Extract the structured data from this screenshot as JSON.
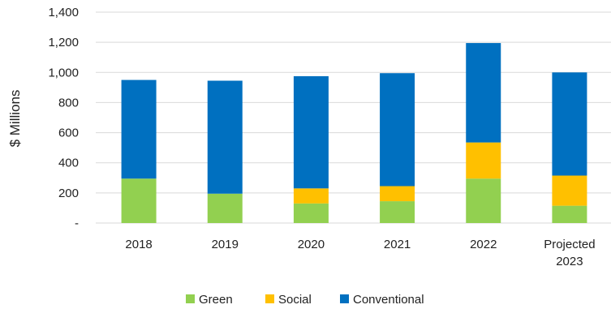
{
  "chart_data": {
    "type": "bar",
    "stacked": true,
    "categories": [
      "2018",
      "2019",
      "2020",
      "2021",
      "2022",
      "Projected\n2023"
    ],
    "series": [
      {
        "name": "Green",
        "color": "#92d050",
        "values": [
          295,
          195,
          130,
          145,
          295,
          115
        ]
      },
      {
        "name": "Social",
        "color": "#ffc000",
        "values": [
          0,
          0,
          100,
          100,
          240,
          200
        ]
      },
      {
        "name": "Conventional",
        "color": "#0070c0",
        "values": [
          655,
          750,
          745,
          750,
          660,
          685
        ]
      }
    ],
    "ylabel": "$ Millions",
    "ylim": [
      0,
      1400
    ],
    "yticks": [
      0,
      200,
      400,
      600,
      800,
      1000,
      1200,
      1400
    ],
    "ytick_labels": [
      "-",
      "200",
      "400",
      "600",
      "800",
      "1,000",
      "1,200",
      "1,400"
    ],
    "grid": true,
    "legend_position": "bottom"
  }
}
